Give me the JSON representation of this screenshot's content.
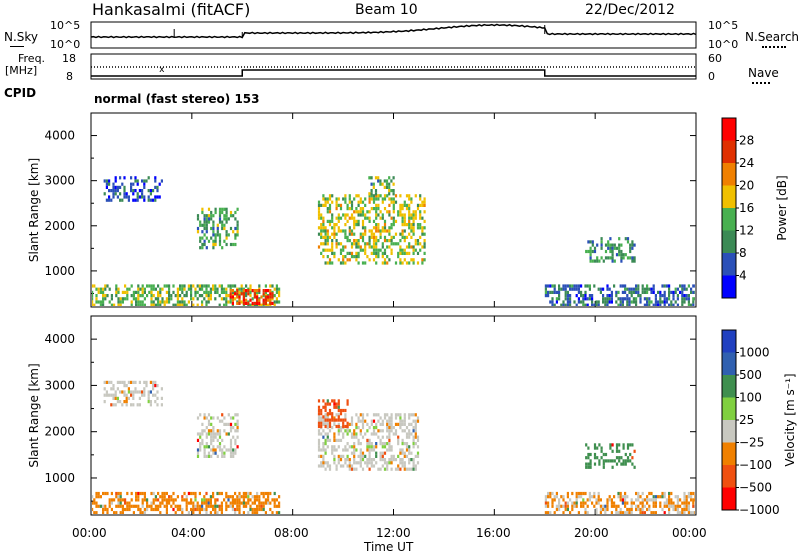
{
  "header": {
    "station": "Hankasalmi (fitACF)",
    "beam": "Beam 10",
    "date": "22/Dec/2012"
  },
  "noise_panel": {
    "left_label": "N.Sky",
    "right_label": "N.Search",
    "left_ticks": [
      "10^5",
      "10^0"
    ],
    "right_ticks": [
      "10^5",
      "10^0"
    ]
  },
  "freq_panel": {
    "left_label": "Freq.",
    "left_unit": "[MHz]",
    "right_label": "Nave",
    "left_ticks": [
      "18",
      "8"
    ],
    "right_ticks": [
      "60",
      "0"
    ]
  },
  "cpid": {
    "label": "CPID",
    "text": "normal (fast stereo) 153"
  },
  "time_axis": {
    "label": "Time UT",
    "ticks": [
      "00:00",
      "04:00",
      "08:00",
      "12:00",
      "16:00",
      "20:00",
      "00:00"
    ]
  },
  "colors": {
    "power": [
      "#0000ff",
      "#2b50b8",
      "#3b8a55",
      "#48b050",
      "#f0c000",
      "#f08000",
      "#e03000",
      "#ff0000"
    ],
    "velocity": [
      "#ff0000",
      "#f05010",
      "#f08000",
      "#f0b000",
      "#c8c8c0",
      "#80d040",
      "#3f8f4f",
      "#3060b0",
      "#2040c0"
    ]
  },
  "chart_data": [
    {
      "type": "heatmap",
      "ylabel": "Slant Range [km]",
      "xlabel": "Time UT",
      "yticks": [
        "1000",
        "2000",
        "3000",
        "4000"
      ],
      "ylim": [
        200,
        4500
      ],
      "xlim": [
        0,
        24
      ],
      "colorbar": {
        "label": "Power [dB]",
        "ticks": [
          "4",
          "8",
          "12",
          "16",
          "20",
          "24",
          "28"
        ],
        "range": [
          0,
          32
        ]
      },
      "regions": [
        {
          "t0": 0.5,
          "t1": 2.8,
          "r0": 2550,
          "r1": 3100,
          "level": 6
        },
        {
          "t0": 4.2,
          "t1": 5.8,
          "r0": 1500,
          "r1": 2400,
          "level": 12
        },
        {
          "t0": 9.0,
          "t1": 13.2,
          "r0": 1200,
          "r1": 2700,
          "level": 16
        },
        {
          "t0": 11.0,
          "t1": 12.0,
          "r0": 2700,
          "r1": 3100,
          "level": 12
        },
        {
          "t0": 19.6,
          "t1": 21.6,
          "r0": 1200,
          "r1": 1750,
          "level": 10
        },
        {
          "t0": 0.0,
          "t1": 7.5,
          "r0": 250,
          "r1": 700,
          "level": 14
        },
        {
          "t0": 5.5,
          "t1": 7.2,
          "r0": 250,
          "r1": 600,
          "level": 26
        },
        {
          "t0": 18.0,
          "t1": 24.0,
          "r0": 250,
          "r1": 700,
          "level": 8
        }
      ]
    },
    {
      "type": "heatmap",
      "ylabel": "Slant Range [km]",
      "xlabel": "Time UT",
      "yticks": [
        "1000",
        "2000",
        "3000",
        "4000"
      ],
      "ylim": [
        200,
        4500
      ],
      "xlim": [
        0,
        24
      ],
      "colorbar": {
        "label": "Velocity [m s⁻¹]",
        "ticks": [
          "1000",
          "500",
          "100",
          "25",
          "−25",
          "−100",
          "−500",
          "−1000"
        ]
      },
      "regions": [
        {
          "t0": 0.5,
          "t1": 2.8,
          "r0": 2550,
          "r1": 3100,
          "velocity": 0
        },
        {
          "t0": 4.2,
          "t1": 5.8,
          "r0": 1500,
          "r1": 2400,
          "velocity": 0
        },
        {
          "t0": 9.0,
          "t1": 13.0,
          "r0": 1200,
          "r1": 2400,
          "velocity": 0
        },
        {
          "t0": 9.0,
          "t1": 10.2,
          "r0": 2100,
          "r1": 2700,
          "velocity": -300
        },
        {
          "t0": 19.6,
          "t1": 21.6,
          "r0": 1200,
          "r1": 1750,
          "velocity": 400
        },
        {
          "t0": 0.0,
          "t1": 7.5,
          "r0": 250,
          "r1": 700,
          "velocity": -50
        },
        {
          "t0": 18.0,
          "t1": 24.0,
          "r0": 250,
          "r1": 700,
          "velocity": -30
        }
      ]
    }
  ]
}
